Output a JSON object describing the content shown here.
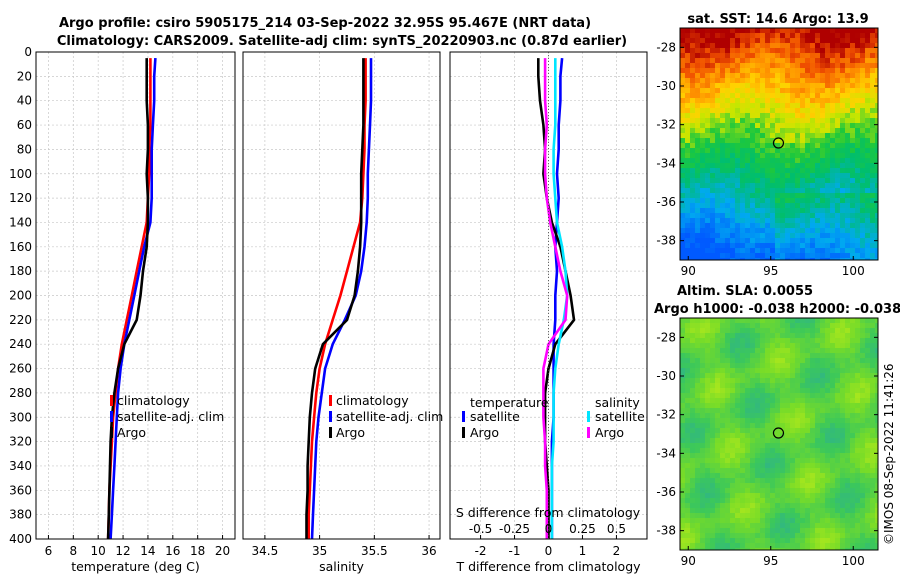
{
  "figure": {
    "title_line1": "Argo profile: csiro 5905175_214 03-Sep-2022 32.95S 95.467E (NRT data)",
    "title_line2": "Climatology: CARS2009. Satellite-adj clim: synTS_20220903.nc (0.87d earlier)",
    "side_stamp": "©IMOS 08-Sep-2022 11:41:26"
  },
  "colors": {
    "climatology": "#ff0000",
    "satellite": "#0000ff",
    "argo": "#000000",
    "sat_salinity": "#00e5ff",
    "argo_salinity": "#ff00ff"
  },
  "chart_data": [
    {
      "type": "line",
      "id": "temperature",
      "xlabel": "temperature (deg C)",
      "xlim": [
        5,
        21
      ],
      "xticks": [
        6,
        8,
        10,
        12,
        14,
        16,
        18,
        20
      ],
      "ylim": [
        0,
        400
      ],
      "yticks": [
        0,
        20,
        40,
        60,
        80,
        100,
        120,
        140,
        160,
        180,
        200,
        220,
        240,
        260,
        280,
        300,
        320,
        340,
        360,
        380,
        400
      ],
      "y_reversed": true,
      "grid": true,
      "legend": {
        "position": "lower-right",
        "entries": [
          "climatology",
          "satellite-adj. clim",
          "Argo"
        ]
      },
      "depth": [
        5,
        20,
        40,
        60,
        80,
        100,
        120,
        140,
        160,
        180,
        200,
        220,
        240,
        260,
        280,
        300,
        320,
        340,
        360,
        380,
        400
      ],
      "series": [
        {
          "name": "climatology",
          "color_key": "climatology",
          "values": [
            14.2,
            14.2,
            14.2,
            14.2,
            14.1,
            14.1,
            14.0,
            13.9,
            13.5,
            13.1,
            12.7,
            12.3,
            11.9,
            11.6,
            11.4,
            11.2,
            11.1,
            11.0,
            10.9,
            10.85,
            10.8
          ]
        },
        {
          "name": "satellite-adj. clim",
          "color_key": "satellite",
          "values": [
            14.6,
            14.5,
            14.5,
            14.4,
            14.3,
            14.3,
            14.3,
            14.2,
            13.7,
            13.3,
            12.9,
            12.5,
            12.1,
            11.8,
            11.6,
            11.5,
            11.4,
            11.3,
            11.2,
            11.1,
            11.0
          ]
        },
        {
          "name": "Argo",
          "color_key": "argo",
          "values": [
            13.9,
            13.9,
            13.9,
            14.0,
            14.0,
            13.9,
            14.0,
            14.0,
            13.9,
            13.6,
            13.4,
            13.1,
            12.1,
            11.6,
            11.3,
            11.1,
            11.0,
            10.95,
            10.9,
            10.85,
            10.8
          ]
        }
      ]
    },
    {
      "type": "line",
      "id": "salinity",
      "xlabel": "salinity",
      "xlim": [
        34.3,
        36.1
      ],
      "xticks": [
        34.5,
        35,
        35.5,
        36
      ],
      "ylim": [
        0,
        400
      ],
      "y_reversed": true,
      "grid": true,
      "legend": {
        "position": "lower-right",
        "entries": [
          "climatology",
          "satellite-adj. clim",
          "Argo"
        ]
      },
      "depth": [
        5,
        20,
        40,
        60,
        80,
        100,
        120,
        140,
        160,
        180,
        200,
        220,
        240,
        260,
        280,
        300,
        320,
        340,
        360,
        380,
        400
      ],
      "series": [
        {
          "name": "climatology",
          "color_key": "climatology",
          "values": [
            35.42,
            35.42,
            35.42,
            35.41,
            35.41,
            35.4,
            35.39,
            35.37,
            35.31,
            35.25,
            35.19,
            35.12,
            35.05,
            35.0,
            34.97,
            34.95,
            34.93,
            34.92,
            34.91,
            34.9,
            34.9
          ]
        },
        {
          "name": "satellite-adj. clim",
          "color_key": "satellite",
          "values": [
            35.47,
            35.47,
            35.47,
            35.46,
            35.45,
            35.44,
            35.44,
            35.43,
            35.41,
            35.38,
            35.33,
            35.23,
            35.12,
            35.05,
            35.02,
            34.99,
            34.97,
            34.96,
            34.95,
            34.94,
            34.93
          ]
        },
        {
          "name": "Argo",
          "color_key": "argo",
          "values": [
            35.4,
            35.4,
            35.4,
            35.4,
            35.39,
            35.38,
            35.38,
            35.38,
            35.37,
            35.35,
            35.32,
            35.25,
            35.03,
            34.96,
            34.93,
            34.91,
            34.9,
            34.89,
            34.89,
            34.88,
            34.88
          ]
        }
      ]
    },
    {
      "type": "line",
      "id": "difference",
      "xlabel": "T difference from climatology",
      "xlim": [
        -2.9,
        2.9
      ],
      "xticks": [
        -2,
        -1,
        0,
        1,
        2
      ],
      "top_axis_label": "S difference from climatology",
      "top_xticks": [
        "-0.5",
        "-0.25",
        "0",
        "0.25",
        "0.5"
      ],
      "s_scale_factor": 4,
      "ylim": [
        0,
        400
      ],
      "y_reversed": true,
      "grid": true,
      "legend_temperature": {
        "title": "temperature",
        "entries": [
          "satellite",
          "Argo"
        ]
      },
      "legend_salinity": {
        "title": "salinity",
        "entries": [
          "satellite",
          "Argo"
        ]
      },
      "depth": [
        5,
        20,
        40,
        60,
        80,
        100,
        120,
        140,
        160,
        180,
        200,
        220,
        240,
        260,
        280,
        300,
        320,
        340,
        360,
        380,
        400
      ],
      "series": [
        {
          "name": "temperature satellite",
          "color_key": "satellite",
          "values": [
            0.4,
            0.35,
            0.35,
            0.3,
            0.3,
            0.25,
            0.3,
            0.25,
            0.2,
            0.25,
            0.2,
            0.2,
            0.15,
            0.15,
            0.15,
            0.15,
            0.1,
            0.1,
            0.1,
            0.1,
            0.1
          ]
        },
        {
          "name": "temperature Argo",
          "color_key": "argo",
          "values": [
            -0.3,
            -0.3,
            -0.25,
            -0.15,
            -0.1,
            -0.15,
            -0.05,
            0.1,
            0.35,
            0.5,
            0.65,
            0.75,
            0.2,
            0.0,
            -0.1,
            -0.1,
            -0.1,
            -0.05,
            0.0,
            0.0,
            0.0
          ]
        },
        {
          "name": "salinity satellite (x4 scaled)",
          "color_key": "sat_salinity",
          "values": [
            0.2,
            0.2,
            0.2,
            0.2,
            0.15,
            0.15,
            0.2,
            0.25,
            0.4,
            0.5,
            0.55,
            0.45,
            0.3,
            0.2,
            0.15,
            0.15,
            0.15,
            0.1,
            0.1,
            0.1,
            0.1
          ]
        },
        {
          "name": "salinity Argo (x4 scaled)",
          "color_key": "argo_salinity",
          "values": [
            -0.1,
            -0.1,
            -0.1,
            -0.05,
            -0.1,
            -0.1,
            -0.05,
            0.05,
            0.2,
            0.35,
            0.55,
            0.5,
            0.0,
            -0.15,
            -0.15,
            -0.15,
            -0.1,
            -0.1,
            -0.05,
            -0.05,
            -0.05
          ]
        }
      ]
    },
    {
      "type": "heatmap",
      "id": "sst_map",
      "title": "sat. SST: 14.6 Argo: 13.9",
      "xlim": [
        89.5,
        101.5
      ],
      "xticks": [
        90,
        95,
        100
      ],
      "ylim": [
        -39,
        -27
      ],
      "yticks": [
        -28,
        -30,
        -32,
        -34,
        -36,
        -38
      ],
      "marker": {
        "lon": 95.467,
        "lat": -32.95
      }
    },
    {
      "type": "heatmap",
      "id": "sla_map",
      "title_line1": "Altim. SLA: 0.0055",
      "title_line2": "Argo h1000: -0.038 h2000: -0.038",
      "xlim": [
        89.5,
        101.5
      ],
      "xticks": [
        90,
        95,
        100
      ],
      "ylim": [
        -39,
        -27
      ],
      "yticks": [
        -28,
        -30,
        -32,
        -34,
        -36,
        -38
      ],
      "marker": {
        "lon": 95.467,
        "lat": -32.95
      }
    }
  ]
}
